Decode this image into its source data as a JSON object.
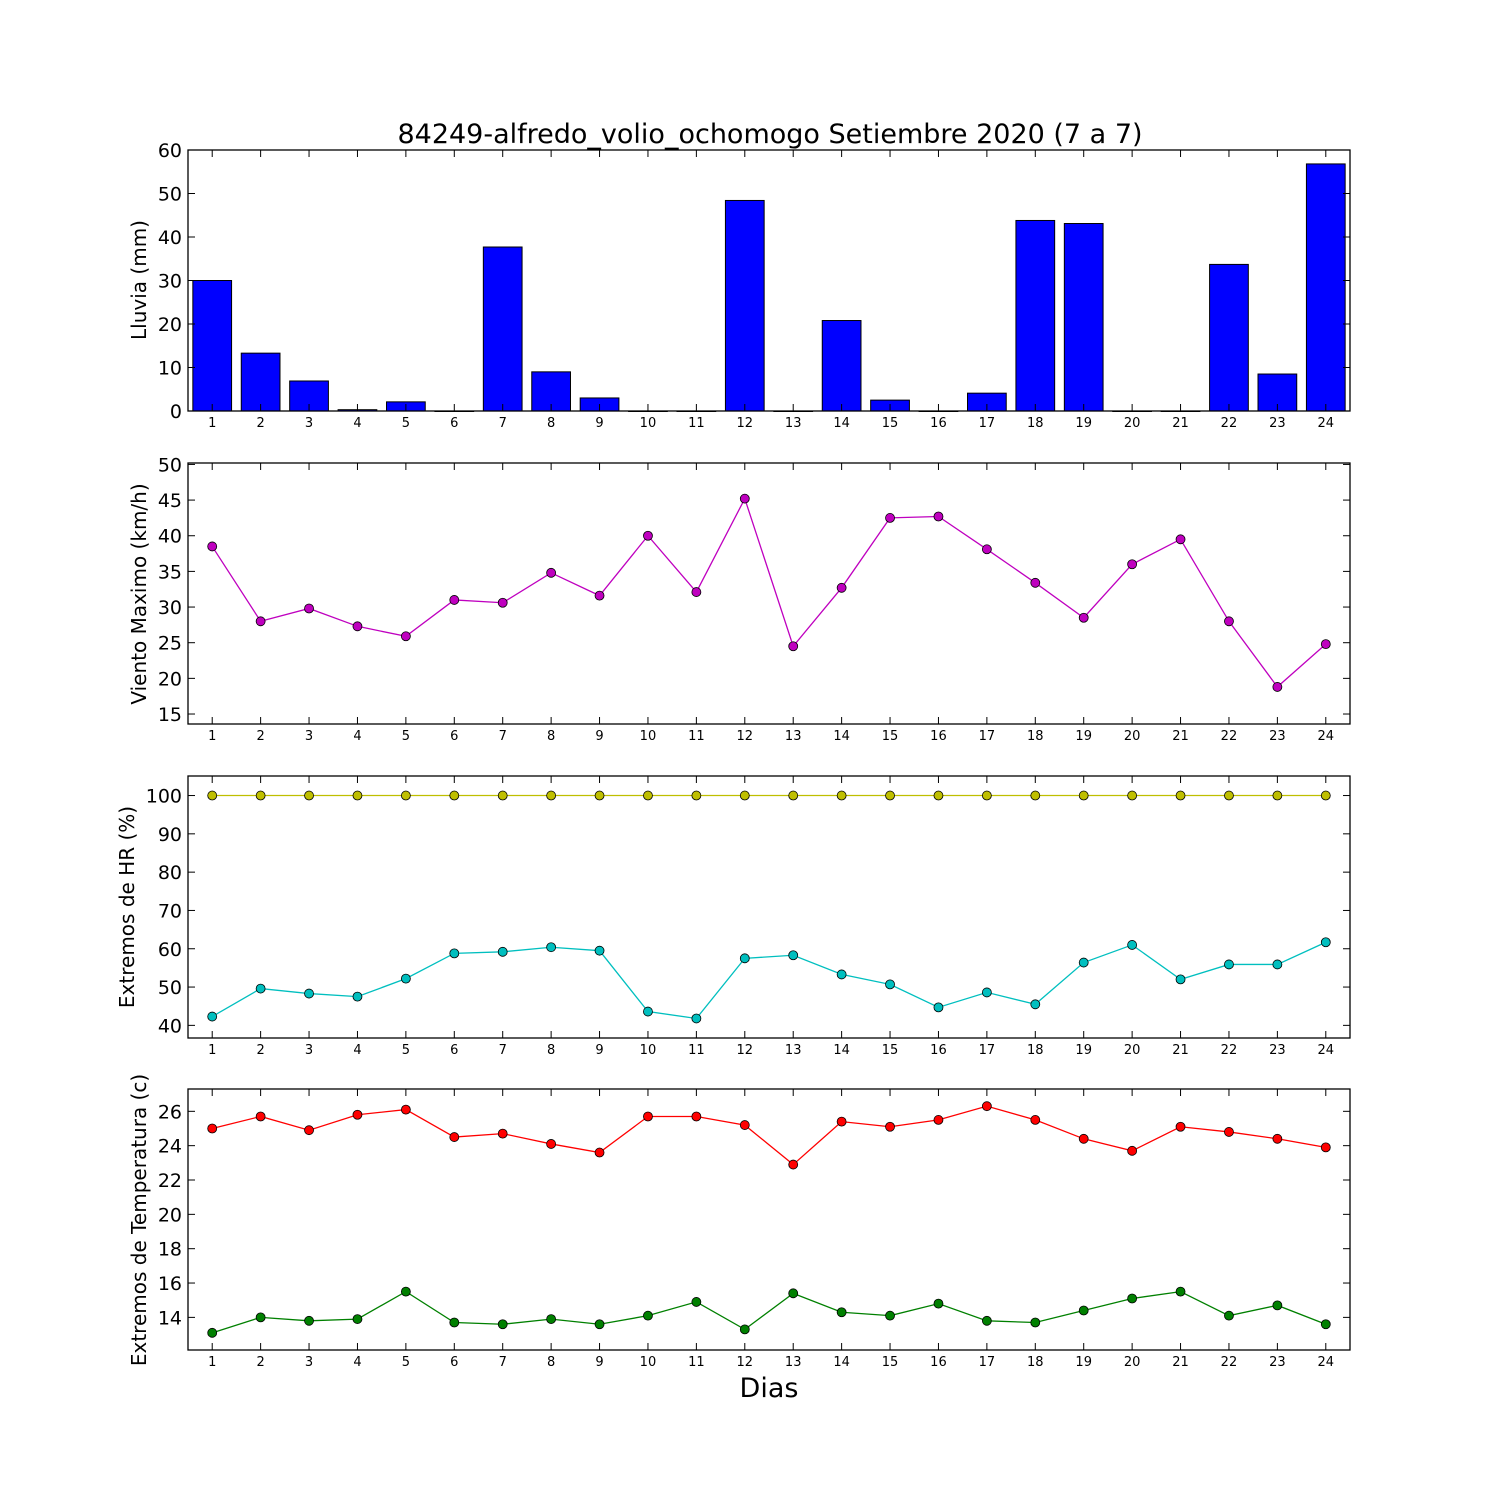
{
  "chart_data": [
    {
      "type": "bar",
      "title": "84249-alfredo_volio_ochomogo Setiembre 2020  (7 a 7)",
      "ylabel": "Lluvia (mm)",
      "categories": [
        1,
        2,
        3,
        4,
        5,
        6,
        7,
        8,
        9,
        10,
        11,
        12,
        13,
        14,
        15,
        16,
        17,
        18,
        19,
        20,
        21,
        22,
        23,
        24
      ],
      "values": [
        30.0,
        13.3,
        6.9,
        0.3,
        2.1,
        0.0,
        37.7,
        9.0,
        3.0,
        0.0,
        0.0,
        48.4,
        0.0,
        20.8,
        2.5,
        0.0,
        4.1,
        43.8,
        43.1,
        0.0,
        0.0,
        33.7,
        8.5,
        56.8
      ],
      "ylim": [
        0,
        60
      ],
      "yticks": [
        0,
        10,
        20,
        30,
        40,
        50,
        60
      ],
      "bar_color": "#0000ff",
      "grid": false
    },
    {
      "type": "line",
      "ylabel": "Viento Maximo (km/h)",
      "x": [
        1,
        2,
        3,
        4,
        5,
        6,
        7,
        8,
        9,
        10,
        11,
        12,
        13,
        14,
        15,
        16,
        17,
        18,
        19,
        20,
        21,
        22,
        23,
        24
      ],
      "series": [
        {
          "color": "#bf00bf",
          "values": [
            38.5,
            28.0,
            29.8,
            27.3,
            25.9,
            31.0,
            30.6,
            34.8,
            31.6,
            40.0,
            32.1,
            45.2,
            24.5,
            32.7,
            42.5,
            42.7,
            38.1,
            33.4,
            28.5,
            36.0,
            39.5,
            28.0,
            18.8,
            24.8
          ]
        }
      ],
      "ylim": [
        13.6,
        50.2
      ],
      "yticks": [
        15,
        20,
        25,
        30,
        35,
        40,
        45,
        50
      ],
      "grid": false
    },
    {
      "type": "line",
      "ylabel": "Extremos de HR (%)",
      "x": [
        1,
        2,
        3,
        4,
        5,
        6,
        7,
        8,
        9,
        10,
        11,
        12,
        13,
        14,
        15,
        16,
        17,
        18,
        19,
        20,
        21,
        22,
        23,
        24
      ],
      "series": [
        {
          "color": "#bfbf00",
          "values": [
            100,
            100,
            100,
            100,
            100,
            100,
            100,
            100,
            100,
            100,
            100,
            100,
            100,
            100,
            100,
            100,
            100,
            100,
            100,
            100,
            100,
            100,
            100,
            100
          ]
        },
        {
          "color": "#00bfbf",
          "values": [
            42.3,
            49.6,
            48.3,
            47.5,
            52.2,
            58.8,
            59.2,
            60.4,
            59.5,
            43.6,
            41.8,
            57.5,
            58.3,
            53.3,
            50.7,
            44.7,
            48.6,
            45.5,
            56.4,
            61.0,
            52.0,
            55.9,
            55.9,
            61.7
          ]
        }
      ],
      "ylim": [
        36.7,
        105.1
      ],
      "yticks": [
        40,
        50,
        60,
        70,
        80,
        90,
        100
      ],
      "grid": false
    },
    {
      "type": "line",
      "ylabel": "Extremos de Temperatura (c)",
      "xlabel": "Dias",
      "x": [
        1,
        2,
        3,
        4,
        5,
        6,
        7,
        8,
        9,
        10,
        11,
        12,
        13,
        14,
        15,
        16,
        17,
        18,
        19,
        20,
        21,
        22,
        23,
        24
      ],
      "series": [
        {
          "color": "#ff0000",
          "values": [
            25.0,
            25.7,
            24.9,
            25.8,
            26.1,
            24.5,
            24.7,
            24.1,
            23.6,
            25.7,
            25.7,
            25.2,
            22.9,
            25.4,
            25.1,
            25.5,
            26.3,
            25.5,
            24.4,
            23.7,
            25.1,
            24.8,
            24.4,
            23.9
          ]
        },
        {
          "color": "#008000",
          "values": [
            13.1,
            14.0,
            13.8,
            13.9,
            15.5,
            13.7,
            13.6,
            13.9,
            13.6,
            14.1,
            14.9,
            13.3,
            15.4,
            14.3,
            14.1,
            14.8,
            13.8,
            13.7,
            14.4,
            15.1,
            15.5,
            14.1,
            14.7,
            13.6
          ]
        }
      ],
      "ylim": [
        12.1,
        27.3
      ],
      "yticks": [
        14,
        16,
        18,
        20,
        22,
        24,
        26
      ],
      "grid": false
    }
  ]
}
